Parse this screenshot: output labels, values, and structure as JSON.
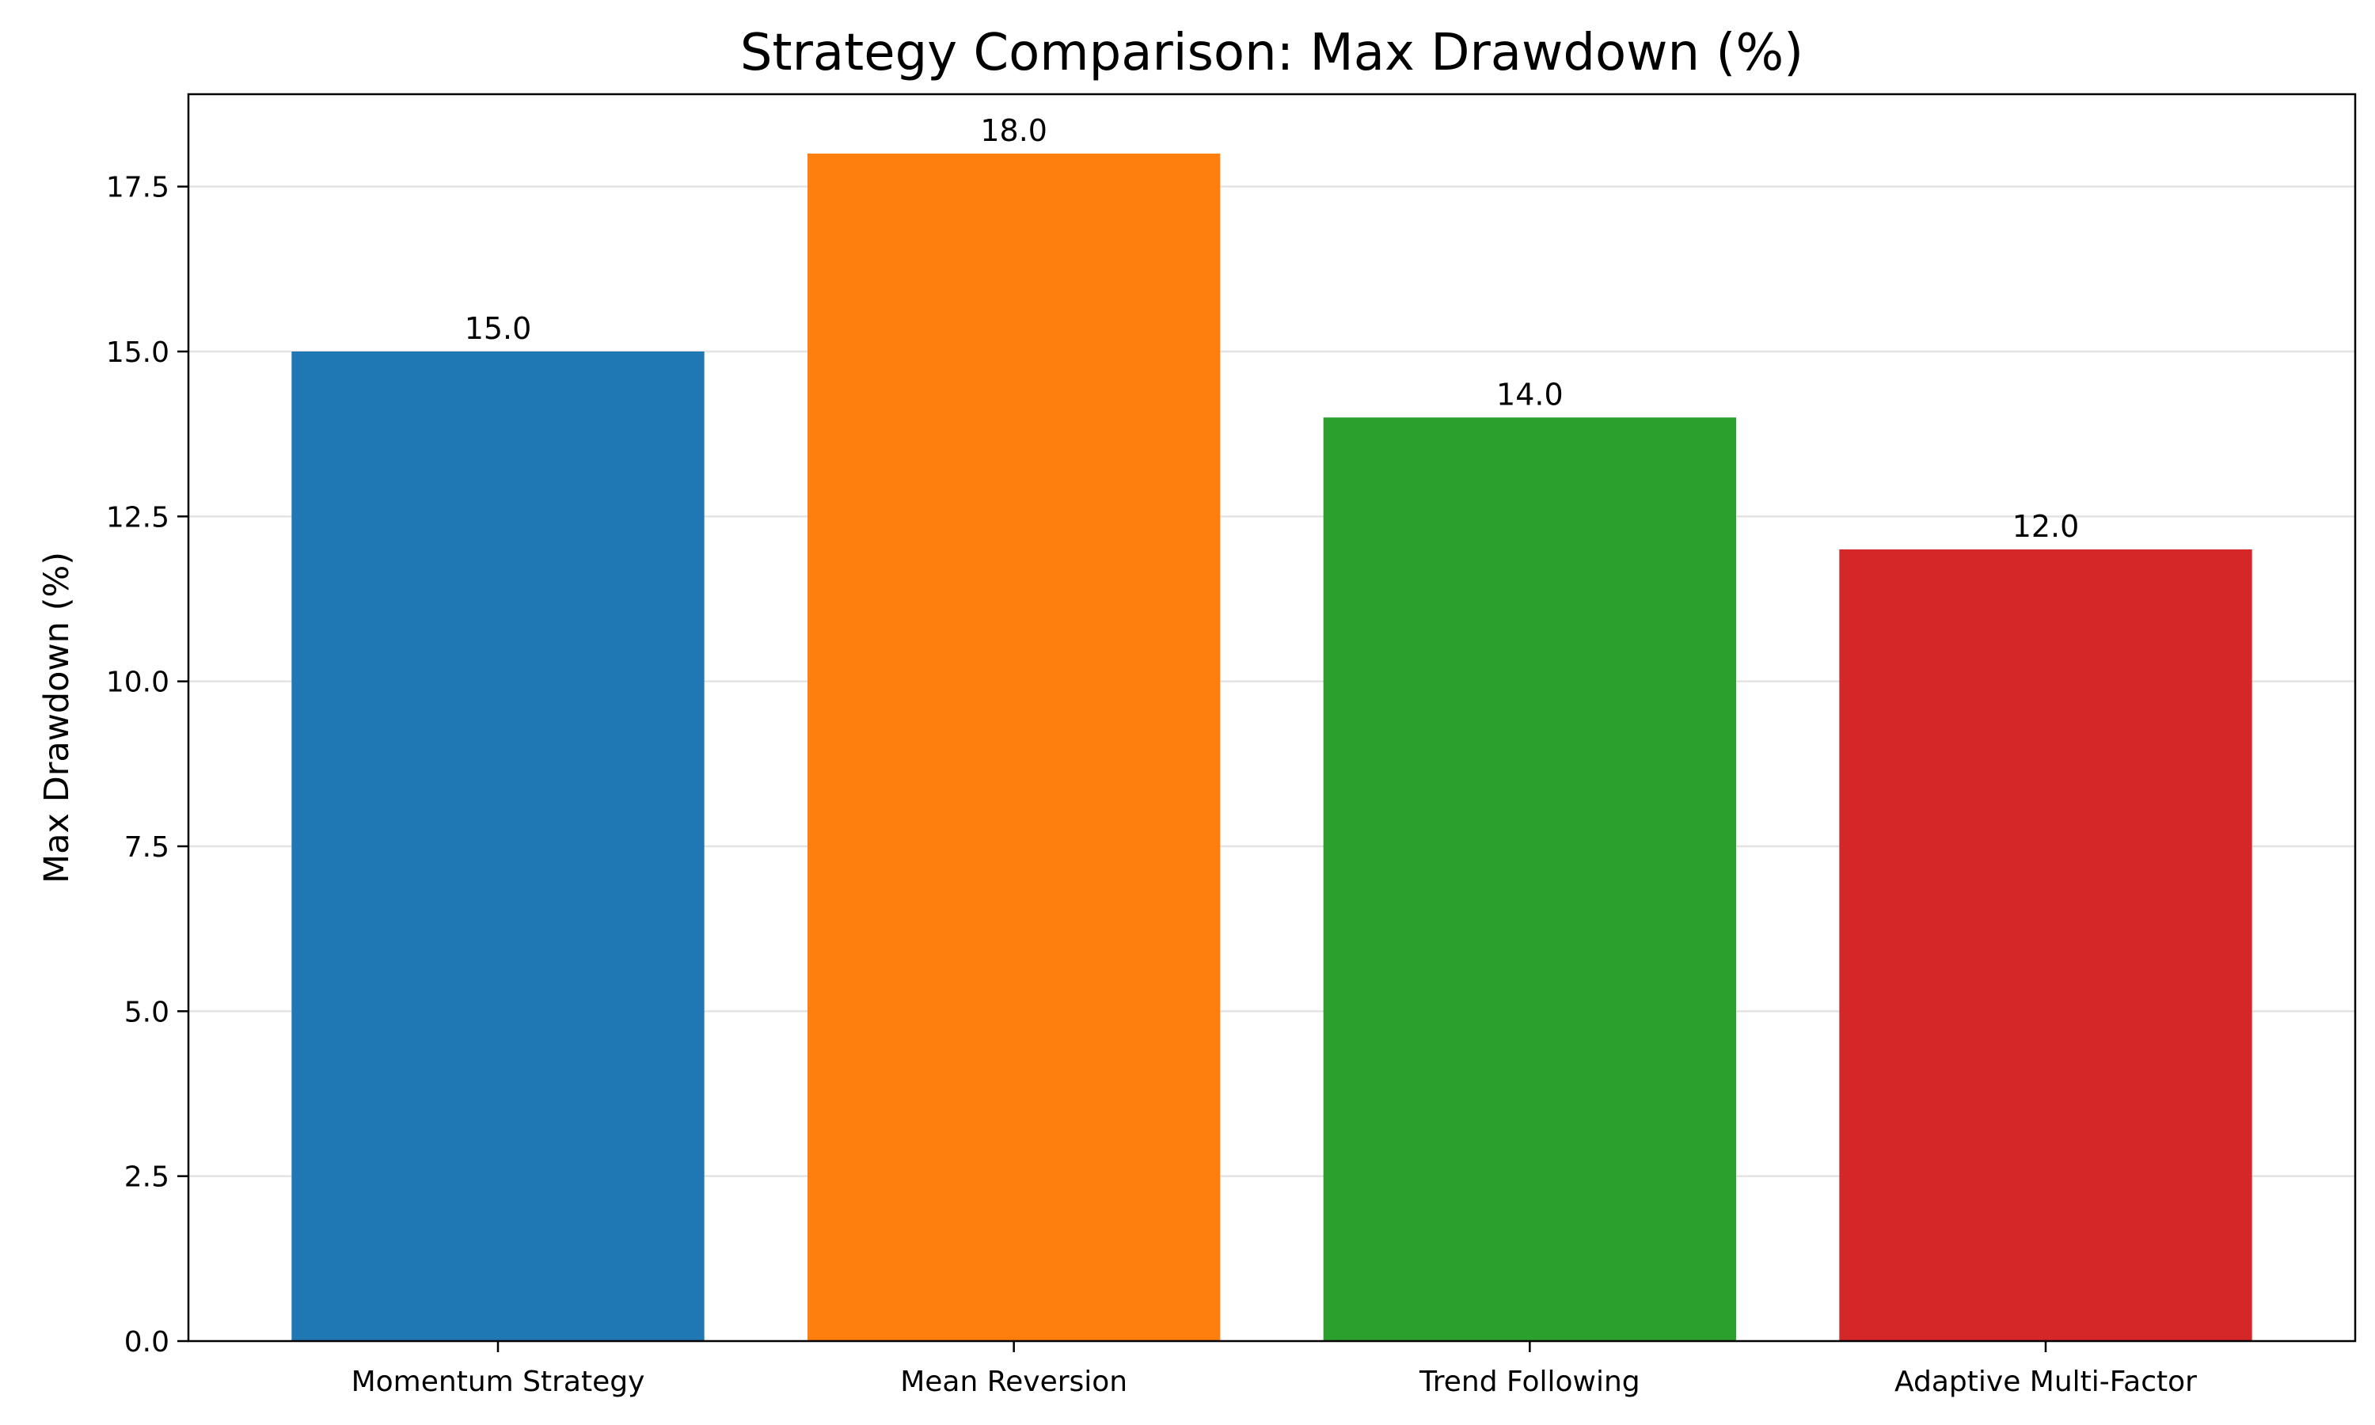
{
  "chart_data": {
    "type": "bar",
    "title": "Strategy Comparison: Max Drawdown (%)",
    "xlabel": "",
    "ylabel": "Max Drawdown (%)",
    "categories": [
      "Momentum Strategy",
      "Mean Reversion",
      "Trend Following",
      "Adaptive Multi-Factor"
    ],
    "values": [
      15.0,
      18.0,
      14.0,
      12.0
    ],
    "value_labels": [
      "15.0",
      "18.0",
      "14.0",
      "12.0"
    ],
    "colors": [
      "#1f77b4",
      "#ff7f0e",
      "#2ca02c",
      "#d62728"
    ],
    "ylim": [
      0,
      18.9
    ],
    "yticks": [
      0.0,
      2.5,
      5.0,
      7.5,
      10.0,
      12.5,
      15.0,
      17.5
    ],
    "ytick_labels": [
      "0.0",
      "2.5",
      "5.0",
      "7.5",
      "10.0",
      "12.5",
      "15.0",
      "17.5"
    ],
    "grid": "y-axis horizontal lines",
    "legend": "none"
  }
}
